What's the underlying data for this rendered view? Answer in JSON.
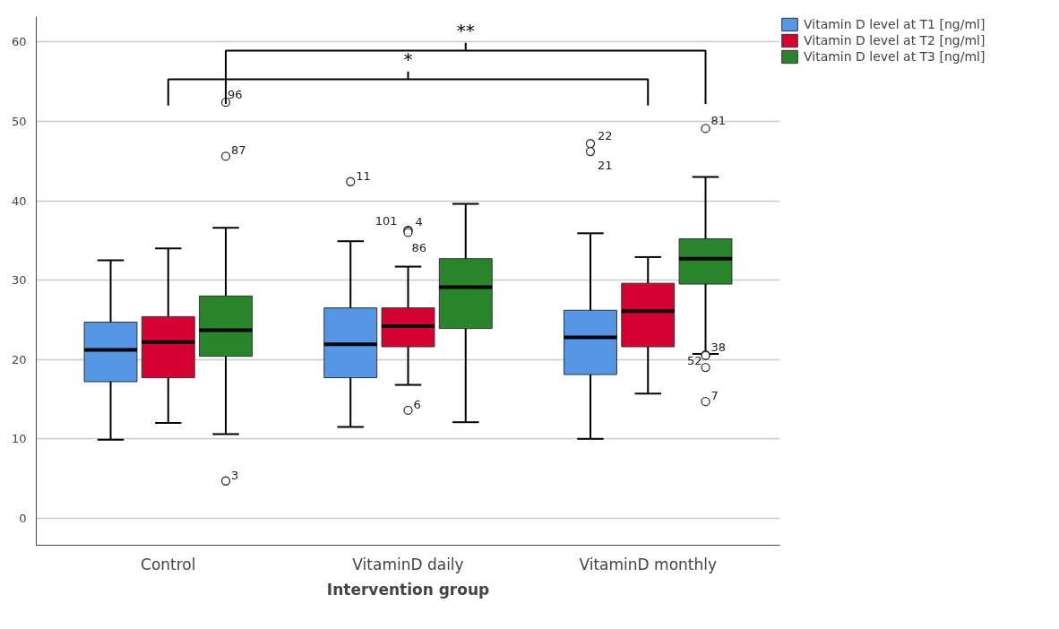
{
  "chart_data": {
    "type": "box",
    "xlabel": "Intervention group",
    "categories": [
      "Control",
      "VitaminD daily",
      "VitaminD monthly"
    ],
    "ylim": [
      -3.4,
      63.2
    ],
    "yticks": [
      0,
      10,
      20,
      30,
      40,
      50,
      60
    ],
    "grid": "y",
    "legend": "top right",
    "series": [
      {
        "name": "Vitamin D level at T1 [ng/ml]",
        "color": "#5596e6",
        "boxes": [
          {
            "low": 9.9,
            "q1": 17.2,
            "median": 21.2,
            "q3": 24.7,
            "high": 32.5
          },
          {
            "low": 11.5,
            "q1": 17.7,
            "median": 21.9,
            "q3": 26.5,
            "high": 34.9,
            "outliers": [
              42.4
            ]
          },
          {
            "low": 10.0,
            "q1": 18.1,
            "median": 22.8,
            "q3": 26.2,
            "high": 35.9,
            "outliers": [
              47.2,
              46.2
            ]
          }
        ]
      },
      {
        "name": "Vitamin D level at T2 [ng/ml]",
        "color": "#d60032",
        "boxes": [
          {
            "low": 12.0,
            "q1": 17.7,
            "median": 22.2,
            "q3": 25.4,
            "high": 34.0
          },
          {
            "low": 16.8,
            "q1": 21.6,
            "median": 24.2,
            "q3": 26.5,
            "high": 31.7,
            "outliers": [
              36.3,
              36.2,
              36.0,
              13.6
            ]
          },
          {
            "low": 15.7,
            "q1": 21.6,
            "median": 26.1,
            "q3": 29.6,
            "high": 32.9
          }
        ]
      },
      {
        "name": "Vitamin D level at T3 [ng/ml]",
        "color": "#29852a",
        "boxes": [
          {
            "low": 10.6,
            "q1": 20.4,
            "median": 23.7,
            "q3": 28.0,
            "high": 36.6,
            "outliers": [
              52.4,
              45.6,
              4.7
            ]
          },
          {
            "low": 12.1,
            "q1": 23.9,
            "median": 29.1,
            "q3": 32.7,
            "high": 39.6
          },
          {
            "low": 20.7,
            "q1": 29.5,
            "median": 32.7,
            "q3": 35.2,
            "high": 43.0,
            "outliers": [
              49.1,
              20.6,
              20.5,
              14.7,
              19.0
            ]
          }
        ]
      }
    ],
    "annotations": [
      "**",
      "*",
      "11",
      "22",
      "21",
      "101",
      "4",
      "86",
      "6",
      "96",
      "87",
      "3",
      "81",
      "38",
      "52",
      "7"
    ]
  }
}
